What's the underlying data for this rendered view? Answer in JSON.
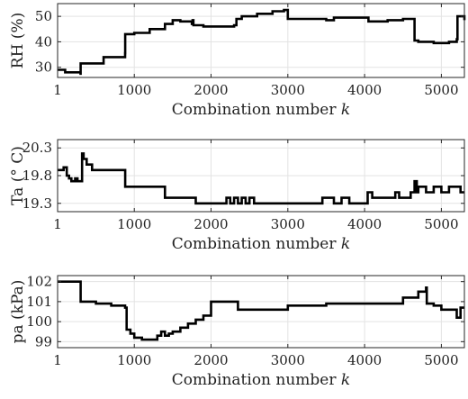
{
  "chart_data": [
    {
      "type": "line",
      "xlabel": "Combination number ",
      "xlabel_italic": "k",
      "ylabel": "RH (%)",
      "xlim": [
        1,
        5300
      ],
      "ylim": [
        26,
        55
      ],
      "xticks": [
        1,
        1000,
        2000,
        3000,
        4000,
        5000
      ],
      "yticks": [
        30,
        40,
        50
      ],
      "grid": true,
      "series": [
        {
          "x": [
            1,
            100,
            300,
            301,
            600,
            880,
            881,
            1000,
            1200,
            1400,
            1500,
            1600,
            1750,
            1760,
            1770,
            1900,
            2000,
            2100,
            2300,
            2330,
            2400,
            2600,
            2800,
            2950,
            3000,
            3200,
            3400,
            3500,
            3600,
            3800,
            4050,
            4100,
            4300,
            4500,
            4640,
            4650,
            4700,
            4900,
            5100,
            5200,
            5210,
            5300
          ],
          "y": [
            29,
            28,
            27.5,
            31.5,
            34,
            35.5,
            43,
            43.5,
            45,
            47,
            48.5,
            48,
            47,
            48.5,
            46.5,
            46,
            46,
            46,
            46.5,
            49,
            50,
            51,
            52,
            52.5,
            49,
            49,
            49,
            48.5,
            49.5,
            49.5,
            48,
            48,
            48.5,
            49,
            49,
            40.5,
            40,
            39.5,
            40,
            41,
            50,
            48.5
          ]
        }
      ]
    },
    {
      "type": "line",
      "xlabel": "Combination number ",
      "xlabel_italic": "k",
      "ylabel": "Ta (° C)",
      "xlim": [
        1,
        5300
      ],
      "ylim": [
        19.15,
        20.45
      ],
      "xticks": [
        1,
        1000,
        2000,
        3000,
        4000,
        5000
      ],
      "yticks": [
        19.3,
        19.8,
        20.3
      ],
      "ytick_labels": [
        "19.3",
        "19.8",
        "20.3"
      ],
      "grid": true,
      "series": [
        {
          "x": [
            1,
            80,
            120,
            150,
            180,
            230,
            260,
            320,
            340,
            380,
            450,
            600,
            880,
            881,
            1200,
            1390,
            1400,
            1700,
            1790,
            1800,
            1900,
            2150,
            2200,
            2250,
            2300,
            2350,
            2400,
            2450,
            2500,
            2560,
            2600,
            2900,
            3400,
            3450,
            3600,
            3700,
            3800,
            4030,
            4040,
            4100,
            4400,
            4450,
            4600,
            4650,
            4680,
            4700,
            4800,
            4900,
            5000,
            5100,
            5200,
            5250,
            5300
          ],
          "y": [
            19.9,
            19.95,
            19.8,
            19.75,
            19.7,
            19.75,
            19.7,
            20.2,
            20.1,
            20.0,
            19.9,
            19.9,
            19.9,
            19.6,
            19.6,
            19.6,
            19.4,
            19.4,
            19.4,
            19.3,
            19.3,
            19.3,
            19.4,
            19.3,
            19.4,
            19.3,
            19.4,
            19.3,
            19.4,
            19.3,
            19.3,
            19.3,
            19.3,
            19.4,
            19.3,
            19.4,
            19.3,
            19.3,
            19.5,
            19.4,
            19.5,
            19.4,
            19.5,
            19.7,
            19.5,
            19.6,
            19.5,
            19.6,
            19.5,
            19.6,
            19.6,
            19.5,
            19.5
          ]
        }
      ]
    },
    {
      "type": "line",
      "xlabel": "Combination number ",
      "xlabel_italic": "k",
      "ylabel": "pa (kPa)",
      "xlim": [
        1,
        5300
      ],
      "ylim": [
        98.7,
        102.3
      ],
      "xticks": [
        1,
        1000,
        2000,
        3000,
        4000,
        5000
      ],
      "yticks": [
        99,
        100,
        101,
        102
      ],
      "grid": true,
      "series": [
        {
          "x": [
            1,
            300,
            301,
            500,
            700,
            880,
            900,
            950,
            1000,
            1100,
            1200,
            1300,
            1350,
            1400,
            1450,
            1500,
            1600,
            1700,
            1800,
            1900,
            1950,
            2000,
            2300,
            2350,
            2400,
            2900,
            3000,
            3400,
            3500,
            4000,
            4500,
            4700,
            4800,
            4810,
            4900,
            5000,
            5100,
            5200,
            5250,
            5300
          ],
          "y": [
            102,
            102,
            101,
            100.9,
            100.8,
            100.7,
            99.6,
            99.4,
            99.2,
            99.1,
            99.1,
            99.3,
            99.5,
            99.3,
            99.4,
            99.5,
            99.7,
            99.9,
            100.1,
            100.3,
            100.3,
            101.0,
            101.0,
            100.6,
            100.6,
            100.6,
            100.8,
            100.8,
            100.9,
            100.9,
            101.2,
            101.5,
            101.7,
            100.9,
            100.8,
            100.6,
            100.6,
            100.2,
            100.7,
            100.7
          ]
        }
      ]
    }
  ]
}
